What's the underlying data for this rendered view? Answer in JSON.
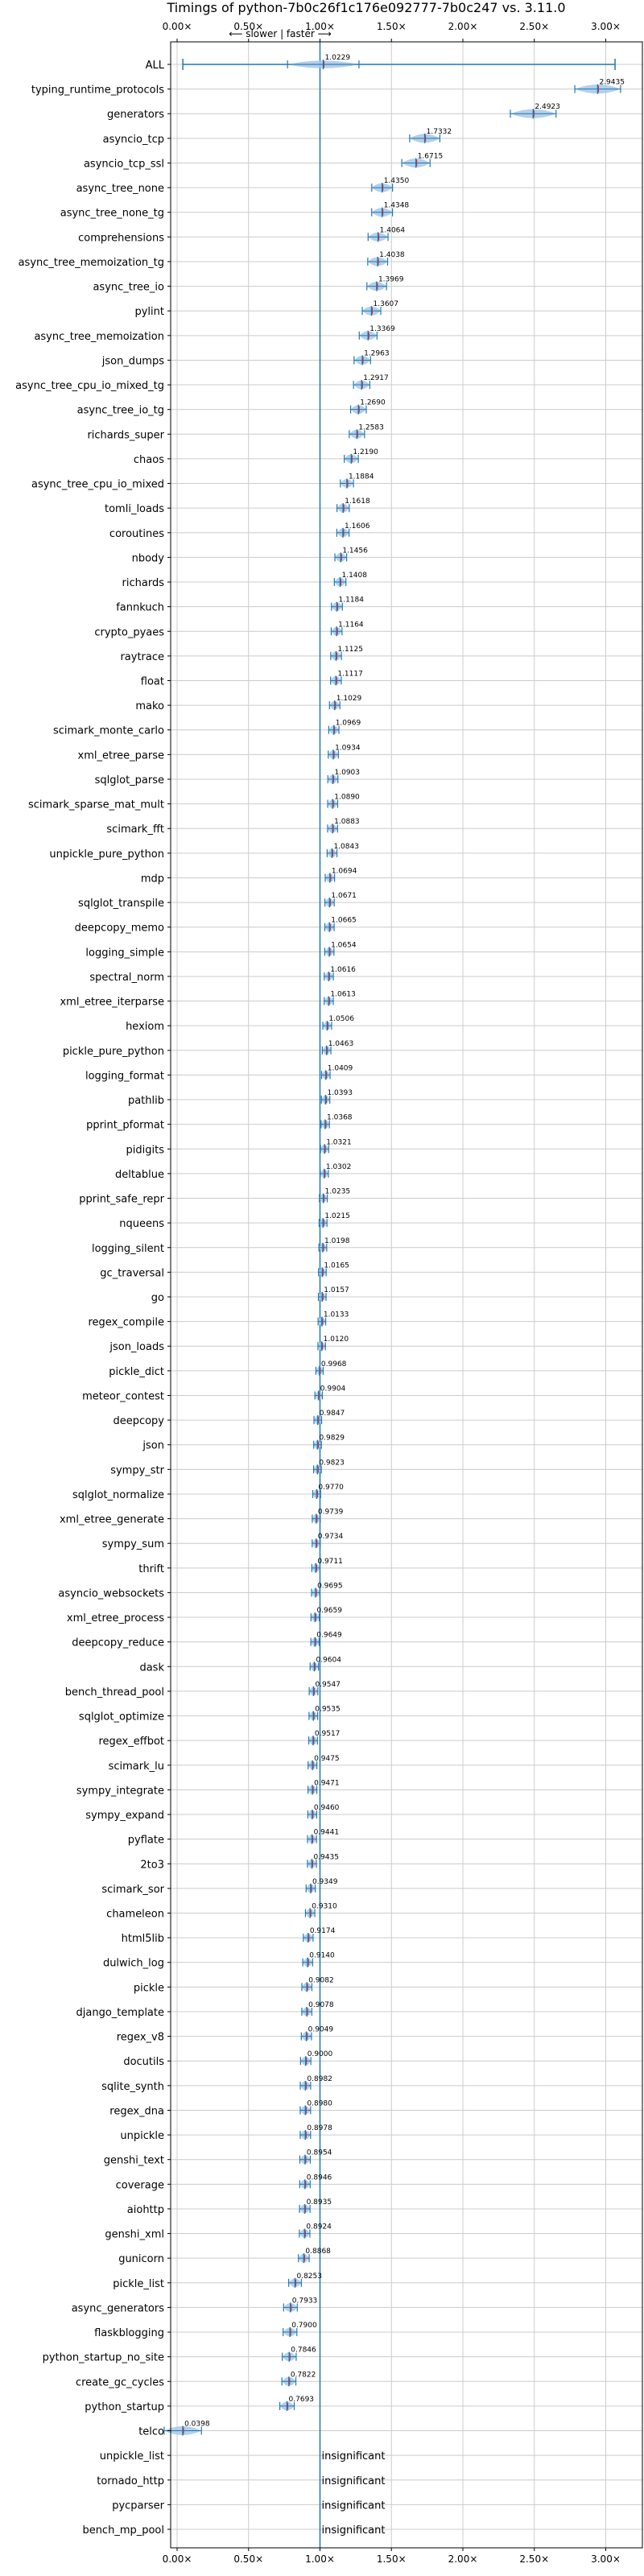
{
  "chart_data": {
    "type": "violin",
    "title": "Timings of python-7b0c26f1c176e092777-7b0c247 vs. 3.11.0",
    "direction_label": "⟵ slower | faster ⟶",
    "xlim": [
      0,
      3.1
    ],
    "xticks": [
      "0.00×",
      "0.50×",
      "1.00×",
      "1.50×",
      "2.00×",
      "2.50×",
      "3.00×"
    ],
    "xtick_values": [
      0,
      0.5,
      1.0,
      1.5,
      2.0,
      2.5,
      3.0
    ],
    "grid": true,
    "reference_line": 1.0,
    "insignificant_label": "insignificant",
    "colors": {
      "violin": "#a6c8e6",
      "marker": "#1f77b4",
      "median": "#d62728",
      "reference": "#1f77b4",
      "grid": "#cccccc"
    },
    "benchmarks": [
      {
        "name": "ALL",
        "mean": 1.0229
      },
      {
        "name": "typing_runtime_protocols",
        "mean": 2.9435
      },
      {
        "name": "generators",
        "mean": 2.4923
      },
      {
        "name": "asyncio_tcp",
        "mean": 1.7332
      },
      {
        "name": "asyncio_tcp_ssl",
        "mean": 1.6715
      },
      {
        "name": "async_tree_none",
        "mean": 1.435
      },
      {
        "name": "async_tree_none_tg",
        "mean": 1.4348
      },
      {
        "name": "comprehensions",
        "mean": 1.4064
      },
      {
        "name": "async_tree_memoization_tg",
        "mean": 1.4038
      },
      {
        "name": "async_tree_io",
        "mean": 1.3969
      },
      {
        "name": "pylint",
        "mean": 1.3607
      },
      {
        "name": "async_tree_memoization",
        "mean": 1.3369
      },
      {
        "name": "json_dumps",
        "mean": 1.2963
      },
      {
        "name": "async_tree_cpu_io_mixed_tg",
        "mean": 1.2917
      },
      {
        "name": "async_tree_io_tg",
        "mean": 1.269
      },
      {
        "name": "richards_super",
        "mean": 1.2583
      },
      {
        "name": "chaos",
        "mean": 1.219
      },
      {
        "name": "async_tree_cpu_io_mixed",
        "mean": 1.1884
      },
      {
        "name": "tomli_loads",
        "mean": 1.1618
      },
      {
        "name": "coroutines",
        "mean": 1.1606
      },
      {
        "name": "nbody",
        "mean": 1.1456
      },
      {
        "name": "richards",
        "mean": 1.1408
      },
      {
        "name": "fannkuch",
        "mean": 1.1184
      },
      {
        "name": "crypto_pyaes",
        "mean": 1.1164
      },
      {
        "name": "raytrace",
        "mean": 1.1125
      },
      {
        "name": "float",
        "mean": 1.1117
      },
      {
        "name": "mako",
        "mean": 1.1029
      },
      {
        "name": "scimark_monte_carlo",
        "mean": 1.0969
      },
      {
        "name": "xml_etree_parse",
        "mean": 1.0934
      },
      {
        "name": "sqlglot_parse",
        "mean": 1.0903
      },
      {
        "name": "scimark_sparse_mat_mult",
        "mean": 1.089
      },
      {
        "name": "scimark_fft",
        "mean": 1.0883
      },
      {
        "name": "unpickle_pure_python",
        "mean": 1.0843
      },
      {
        "name": "mdp",
        "mean": 1.0694
      },
      {
        "name": "sqlglot_transpile",
        "mean": 1.0671
      },
      {
        "name": "deepcopy_memo",
        "mean": 1.0665
      },
      {
        "name": "logging_simple",
        "mean": 1.0654
      },
      {
        "name": "spectral_norm",
        "mean": 1.0616
      },
      {
        "name": "xml_etree_iterparse",
        "mean": 1.0613
      },
      {
        "name": "hexiom",
        "mean": 1.0506
      },
      {
        "name": "pickle_pure_python",
        "mean": 1.0463
      },
      {
        "name": "logging_format",
        "mean": 1.0409
      },
      {
        "name": "pathlib",
        "mean": 1.0393
      },
      {
        "name": "pprint_pformat",
        "mean": 1.0368
      },
      {
        "name": "pidigits",
        "mean": 1.0321
      },
      {
        "name": "deltablue",
        "mean": 1.0302
      },
      {
        "name": "pprint_safe_repr",
        "mean": 1.0235
      },
      {
        "name": "nqueens",
        "mean": 1.0215
      },
      {
        "name": "logging_silent",
        "mean": 1.0198
      },
      {
        "name": "gc_traversal",
        "mean": 1.0165
      },
      {
        "name": "go",
        "mean": 1.0157
      },
      {
        "name": "regex_compile",
        "mean": 1.0133
      },
      {
        "name": "json_loads",
        "mean": 1.012
      },
      {
        "name": "pickle_dict",
        "mean": 0.9968
      },
      {
        "name": "meteor_contest",
        "mean": 0.9904
      },
      {
        "name": "deepcopy",
        "mean": 0.9847
      },
      {
        "name": "json",
        "mean": 0.9829
      },
      {
        "name": "sympy_str",
        "mean": 0.9823
      },
      {
        "name": "sqlglot_normalize",
        "mean": 0.977
      },
      {
        "name": "xml_etree_generate",
        "mean": 0.9739
      },
      {
        "name": "sympy_sum",
        "mean": 0.9734
      },
      {
        "name": "thrift",
        "mean": 0.9711
      },
      {
        "name": "asyncio_websockets",
        "mean": 0.9695
      },
      {
        "name": "xml_etree_process",
        "mean": 0.9659
      },
      {
        "name": "deepcopy_reduce",
        "mean": 0.9649
      },
      {
        "name": "dask",
        "mean": 0.9604
      },
      {
        "name": "bench_thread_pool",
        "mean": 0.9547
      },
      {
        "name": "sqlglot_optimize",
        "mean": 0.9535
      },
      {
        "name": "regex_effbot",
        "mean": 0.9517
      },
      {
        "name": "scimark_lu",
        "mean": 0.9475
      },
      {
        "name": "sympy_integrate",
        "mean": 0.9471
      },
      {
        "name": "sympy_expand",
        "mean": 0.946
      },
      {
        "name": "pyflate",
        "mean": 0.9441
      },
      {
        "name": "2to3",
        "mean": 0.9435
      },
      {
        "name": "scimark_sor",
        "mean": 0.9349
      },
      {
        "name": "chameleon",
        "mean": 0.931
      },
      {
        "name": "html5lib",
        "mean": 0.9174
      },
      {
        "name": "dulwich_log",
        "mean": 0.914
      },
      {
        "name": "pickle",
        "mean": 0.9082
      },
      {
        "name": "django_template",
        "mean": 0.9078
      },
      {
        "name": "regex_v8",
        "mean": 0.9049
      },
      {
        "name": "docutils",
        "mean": 0.9
      },
      {
        "name": "sqlite_synth",
        "mean": 0.8982
      },
      {
        "name": "regex_dna",
        "mean": 0.898
      },
      {
        "name": "unpickle",
        "mean": 0.8978
      },
      {
        "name": "genshi_text",
        "mean": 0.8954
      },
      {
        "name": "coverage",
        "mean": 0.8946
      },
      {
        "name": "aiohttp",
        "mean": 0.8935
      },
      {
        "name": "genshi_xml",
        "mean": 0.8924
      },
      {
        "name": "gunicorn",
        "mean": 0.8868
      },
      {
        "name": "pickle_list",
        "mean": 0.8253
      },
      {
        "name": "async_generators",
        "mean": 0.7933
      },
      {
        "name": "flaskblogging",
        "mean": 0.79
      },
      {
        "name": "python_startup_no_site",
        "mean": 0.7846
      },
      {
        "name": "create_gc_cycles",
        "mean": 0.7822
      },
      {
        "name": "python_startup",
        "mean": 0.7693
      },
      {
        "name": "telco",
        "mean": 0.0398
      },
      {
        "name": "unpickle_list",
        "mean": null
      },
      {
        "name": "tornado_http",
        "mean": null
      },
      {
        "name": "pycparser",
        "mean": null
      },
      {
        "name": "bench_mp_pool",
        "mean": null
      }
    ]
  }
}
